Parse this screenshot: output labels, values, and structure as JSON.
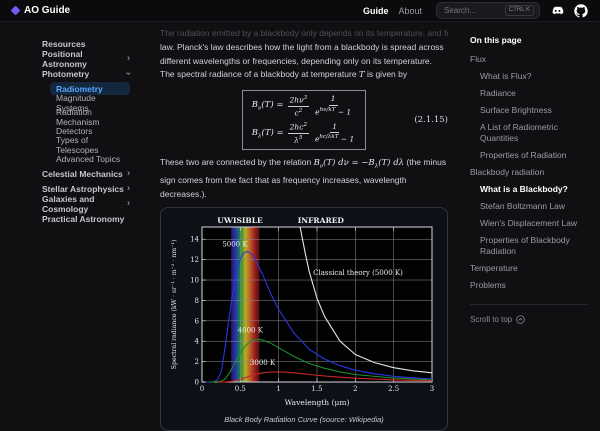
{
  "header": {
    "logo_text": "AO Guide",
    "nav": {
      "guide": "Guide",
      "about": "About"
    },
    "search": {
      "placeholder": "Search...",
      "kbd": "CTRL K"
    },
    "icons": {
      "logo": "purple-diamond",
      "discord": "discord-icon",
      "github": "github-icon"
    }
  },
  "sidebar": {
    "items": [
      {
        "label": "Resources",
        "level": 0,
        "chevron": null,
        "active": false
      },
      {
        "label": "Positional Astronomy",
        "level": 0,
        "chevron": "right",
        "active": false
      },
      {
        "label": "Photometry",
        "level": 0,
        "chevron": "down",
        "active": false
      },
      {
        "label": "Radiometry",
        "level": 1,
        "chevron": null,
        "active": true
      },
      {
        "label": "Magnitude Systems",
        "level": 1,
        "chevron": null,
        "active": false
      },
      {
        "label": "Radiation Mechanism",
        "level": 1,
        "chevron": null,
        "active": false
      },
      {
        "label": "Detectors",
        "level": 1,
        "chevron": null,
        "active": false
      },
      {
        "label": "Types of Telescopes",
        "level": 1,
        "chevron": null,
        "active": false
      },
      {
        "label": "Advanced Topics",
        "level": 1,
        "chevron": null,
        "active": false
      },
      {
        "label": "Celestial Mechanics",
        "level": 0,
        "chevron": "right",
        "active": false
      },
      {
        "label": "Stellar Astrophysics",
        "level": 0,
        "chevron": "right",
        "active": false
      },
      {
        "label": "Galaxies and Cosmology",
        "level": 0,
        "chevron": "right",
        "active": false
      },
      {
        "label": "Practical Astronomy",
        "level": 0,
        "chevron": null,
        "active": false
      }
    ]
  },
  "content": {
    "clipped_line": "The radiation emitted by a blackbody only depends on its temperature, and follows Planck's",
    "para1_a": "law. Planck's law describes how the light from a blackbody is spread across different wavelengths or frequencies, depending only on its temperature. The spectral radiance of a blackbody at temperature ",
    "para1_T": "T",
    "para1_b": " is given by",
    "eq": {
      "number": "(2.1.15)",
      "l1_B": "B",
      "l1_sub": "ν",
      "l1_rest": "(T) =",
      "l1_f1n": "2hν",
      "l1_f1n_sup": "3",
      "l1_f1d": "c",
      "l1_f1d_sup": "2",
      "l1_f2n": "1",
      "l1_f2d_base": "e",
      "l1_f2d_sup": "hν/kT",
      "l1_f2d_tail": " − 1",
      "l2_B": "B",
      "l2_sub": "λ",
      "l2_rest": "(T) =",
      "l2_f1n": "2hc",
      "l2_f1n_sup": "2",
      "l2_f1d": "λ",
      "l2_f1d_sup": "5",
      "l2_f2n": "1",
      "l2_f2d_base": "e",
      "l2_f2d_sup": "hc/λkT",
      "l2_f2d_tail": " − 1"
    },
    "para2_a": "These two are connected by the relation ",
    "p2_m1": "B",
    "p2_m1s": "ν",
    "p2_m2": "(T) dν = −B",
    "p2_m2s": "λ",
    "p2_m3": "(T) dλ",
    "para2_b": " (the minus sign comes from the fact that as frequency increases, wavelength decreases.).",
    "figure_caption": "Black Body Radiation Curve (source: Wikipedia)"
  },
  "chart_data": {
    "type": "line",
    "title": "Black Body Radiation Curve",
    "xlabel": "Wavelength (μm)",
    "ylabel": "Spectral radiance (kW · sr⁻¹ · m⁻² · nm⁻¹)",
    "xlim": [
      0,
      3
    ],
    "ylim": [
      0,
      15.2
    ],
    "xticks": [
      0,
      0.5,
      1,
      1.5,
      2,
      2.5,
      3
    ],
    "xtick_labels": [
      "0",
      "0.5",
      "1",
      "1.5",
      "2",
      "2.5",
      "3"
    ],
    "yticks": [
      0,
      2,
      4,
      6,
      8,
      10,
      12,
      14
    ],
    "grid": true,
    "plot_bg": "#020203",
    "regions": [
      {
        "label": "UV",
        "x": 0.28
      },
      {
        "label": "VISIBLE",
        "x": 0.56
      },
      {
        "label": "INFRARED",
        "x": 1.55
      }
    ],
    "band": {
      "x0": 0.38,
      "x1": 0.75,
      "stops": [
        "#2e1a6e",
        "#2c3fd0",
        "#1fa83c",
        "#d8c92c",
        "#d8722c",
        "#b82222",
        "#551111"
      ]
    },
    "series": [
      {
        "name": "5000 K",
        "color": "#2b35e0",
        "x": [
          0.05,
          0.15,
          0.2,
          0.25,
          0.3,
          0.35,
          0.4,
          0.45,
          0.5,
          0.55,
          0.6,
          0.65,
          0.7,
          0.8,
          0.9,
          1.0,
          1.2,
          1.4,
          1.6,
          1.8,
          2.0,
          2.25,
          2.5,
          2.75,
          3.0
        ],
        "y": [
          0,
          0.01,
          0.21,
          1.0,
          3.3,
          6.1,
          8.7,
          10.8,
          12.1,
          12.7,
          12.8,
          12.5,
          11.9,
          10.4,
          8.6,
          7.1,
          4.8,
          3.2,
          2.25,
          1.6,
          1.16,
          0.8,
          0.56,
          0.41,
          0.3
        ]
      },
      {
        "name": "4000 K",
        "color": "#1f8c2a",
        "x": [
          0.1,
          0.25,
          0.3,
          0.35,
          0.4,
          0.45,
          0.5,
          0.55,
          0.6,
          0.65,
          0.7,
          0.75,
          0.8,
          0.9,
          1.0,
          1.2,
          1.4,
          1.6,
          1.8,
          2.0,
          2.5,
          3.0
        ],
        "y": [
          0,
          0.07,
          0.3,
          0.78,
          1.45,
          2.2,
          2.9,
          3.4,
          3.8,
          4.07,
          4.18,
          4.18,
          4.09,
          3.8,
          3.35,
          2.5,
          1.8,
          1.34,
          0.99,
          0.74,
          0.38,
          0.21
        ]
      },
      {
        "name": "3000 K",
        "color": "#cc2727",
        "x": [
          0.2,
          0.3,
          0.4,
          0.5,
          0.6,
          0.7,
          0.8,
          0.9,
          1.0,
          1.1,
          1.2,
          1.4,
          1.6,
          1.8,
          2.0,
          2.5,
          3.0
        ],
        "y": [
          0,
          0.01,
          0.07,
          0.26,
          0.52,
          0.75,
          0.91,
          0.98,
          0.99,
          0.96,
          0.9,
          0.74,
          0.59,
          0.47,
          0.37,
          0.21,
          0.12
        ]
      },
      {
        "name": "Classical theory (5000 K)",
        "color": "#e6e6e6",
        "x": [
          1.28,
          1.35,
          1.4,
          1.5,
          1.6,
          1.8,
          2.0,
          2.25,
          2.5,
          2.75,
          3.0
        ],
        "y": [
          15.2,
          12.5,
          10.8,
          8.2,
          6.4,
          4.0,
          2.7,
          1.9,
          1.4,
          1.1,
          0.9
        ]
      }
    ],
    "annotations": [
      {
        "text": "5000 K",
        "x": 0.43,
        "y": 13.3,
        "color": "#eeeef2",
        "anchor": "middle"
      },
      {
        "text": "4000 K",
        "x": 0.63,
        "y": 4.85,
        "color": "#eeeef2",
        "anchor": "middle"
      },
      {
        "text": "3000 K",
        "x": 0.79,
        "y": 1.65,
        "color": "#eeeef2",
        "anchor": "middle"
      },
      {
        "text": "Classical theory (5000 K)",
        "x": 1.45,
        "y": 10.5,
        "color": "#eeeef2",
        "anchor": "start"
      }
    ],
    "legend_position": "none"
  },
  "toc": {
    "title": "On this page",
    "items": [
      {
        "label": "Flux",
        "level": 0,
        "active": false
      },
      {
        "label": "What is Flux?",
        "level": 1,
        "active": false
      },
      {
        "label": "Radiance",
        "level": 1,
        "active": false
      },
      {
        "label": "Surface Brightness",
        "level": 1,
        "active": false
      },
      {
        "label": "A List of Radiometric Quantities",
        "level": 1,
        "active": false
      },
      {
        "label": "Properties of Radiation",
        "level": 1,
        "active": false
      },
      {
        "label": "Blackbody radiation",
        "level": 0,
        "active": false
      },
      {
        "label": "What is a Blackbody?",
        "level": 1,
        "active": true
      },
      {
        "label": "Stefan Boltzmann Law",
        "level": 1,
        "active": false
      },
      {
        "label": "Wien's Displacement Law",
        "level": 1,
        "active": false
      },
      {
        "label": "Properties of Blackbody Radiation",
        "level": 1,
        "active": false
      },
      {
        "label": "Temperature",
        "level": 0,
        "active": false
      },
      {
        "label": "Problems",
        "level": 0,
        "active": false
      }
    ],
    "scroll_top": "Scroll to top"
  }
}
